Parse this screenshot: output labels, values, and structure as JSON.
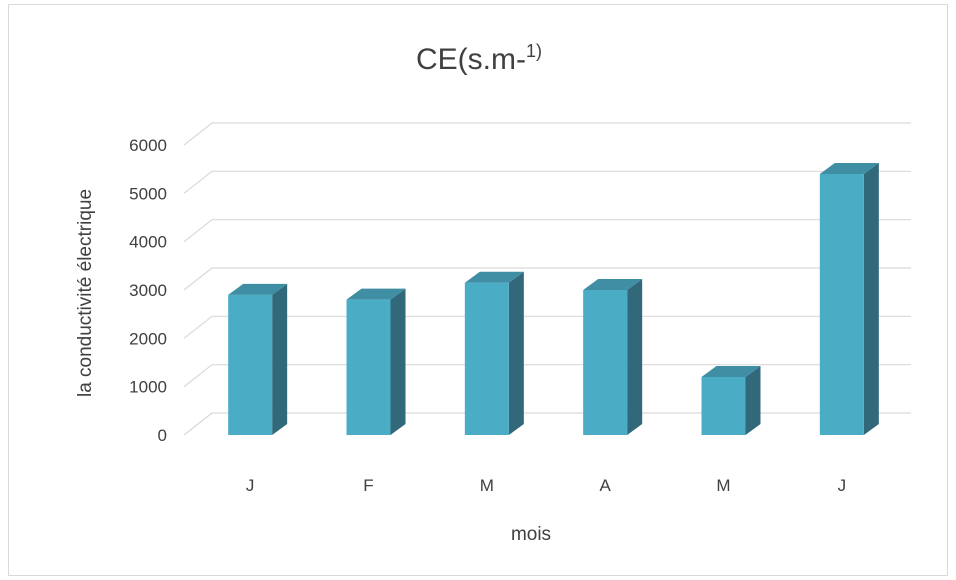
{
  "chart_data": {
    "type": "bar",
    "title": "CE(s.m-",
    "title_sup": "1)",
    "xlabel": "mois",
    "ylabel": "la conductivité électrique",
    "categories": [
      "J",
      "F",
      "M",
      "A",
      "M",
      "J"
    ],
    "values": [
      2900,
      2800,
      3150,
      3000,
      1200,
      5400
    ],
    "ylim": [
      0,
      6000
    ],
    "yticks": [
      0,
      1000,
      2000,
      3000,
      4000,
      5000,
      6000
    ],
    "grid": true,
    "legend": "none",
    "colors": {
      "bar_front": "#4bacc6",
      "bar_side": "#31687a",
      "bar_top": "#3f8ea3",
      "grid": "#d9d9d9"
    }
  }
}
